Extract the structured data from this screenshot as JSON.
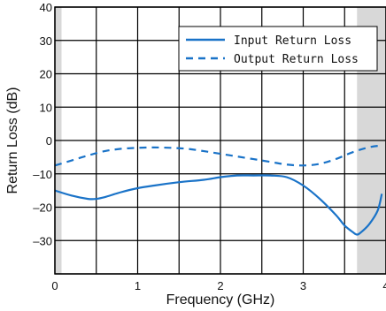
{
  "chart_data": {
    "type": "line",
    "title": "",
    "xlabel": "Frequency (GHz)",
    "ylabel": "Return Loss (dB)",
    "xlim": [
      0,
      4
    ],
    "ylim": [
      -40,
      40
    ],
    "x_ticks": [
      {
        "value": 0,
        "label": "0"
      },
      {
        "value": 1,
        "label": "1"
      },
      {
        "value": 2,
        "label": "2"
      },
      {
        "value": 3,
        "label": "3"
      },
      {
        "value": 4,
        "label": "4"
      }
    ],
    "y_ticks": [
      {
        "value": 40,
        "label": "40"
      },
      {
        "value": 30,
        "label": "30"
      },
      {
        "value": 20,
        "label": "20"
      },
      {
        "value": 10,
        "label": "10"
      },
      {
        "value": 0,
        "label": "0"
      },
      {
        "value": -10,
        "label": "–10"
      },
      {
        "value": -20,
        "label": "–20"
      },
      {
        "value": -30,
        "label": "–30"
      }
    ],
    "grid": true,
    "shaded_x_ranges": [
      [
        0,
        0.08
      ],
      [
        3.65,
        4
      ]
    ],
    "legend": {
      "placement": "top-right"
    },
    "series": [
      {
        "name": "Input Return Loss",
        "style": "solid",
        "color": "#1a73c8",
        "x": [
          0,
          0.2,
          0.4,
          0.5,
          0.6,
          0.8,
          1.0,
          1.2,
          1.5,
          1.8,
          2.0,
          2.2,
          2.4,
          2.6,
          2.8,
          3.0,
          3.2,
          3.4,
          3.5,
          3.6,
          3.65,
          3.7,
          3.8,
          3.9,
          3.95
        ],
        "y": [
          -15,
          -16.5,
          -17.5,
          -17.5,
          -17,
          -15.5,
          -14.3,
          -13.5,
          -12.5,
          -11.8,
          -11,
          -10.5,
          -10.5,
          -10.5,
          -11,
          -13.5,
          -17.5,
          -22.5,
          -25.5,
          -27.5,
          -28.2,
          -27.5,
          -25,
          -21,
          -16
        ]
      },
      {
        "name": "Output Return Loss",
        "style": "dashed",
        "color": "#1a73c8",
        "x": [
          0,
          0.2,
          0.4,
          0.6,
          0.8,
          1.0,
          1.2,
          1.4,
          1.6,
          1.8,
          2.0,
          2.2,
          2.4,
          2.6,
          2.8,
          3.0,
          3.2,
          3.4,
          3.6,
          3.8,
          3.95
        ],
        "y": [
          -7.5,
          -6,
          -4.5,
          -3.2,
          -2.5,
          -2.2,
          -2.1,
          -2.2,
          -2.5,
          -3.2,
          -4,
          -4.8,
          -5.6,
          -6.4,
          -7.2,
          -7.5,
          -7,
          -5.5,
          -3.5,
          -2,
          -1.5
        ]
      }
    ]
  },
  "colors": {
    "line": "#1a73c8",
    "grid": "#000000",
    "shade": "#d8d8d8"
  }
}
